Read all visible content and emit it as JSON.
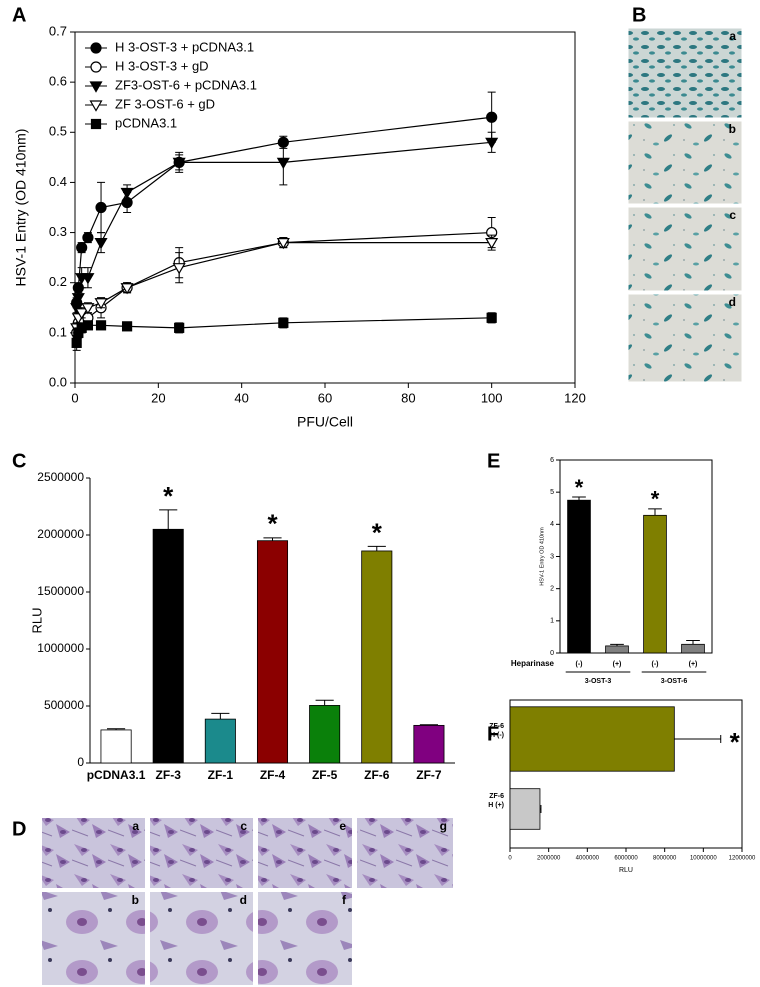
{
  "panel_labels": [
    "A",
    "B",
    "C",
    "D",
    "E",
    "F"
  ],
  "micrographs_B": [
    "a",
    "b",
    "c",
    "d"
  ],
  "micrographs_D": [
    "a",
    "c",
    "e",
    "g",
    "b",
    "d",
    "f"
  ],
  "chart_data": [
    {
      "type": "line",
      "xlabel": "PFU/Cell",
      "ylabel": "HSV-1 Entry (OD 410nm)",
      "x": [
        0.4,
        0.8,
        1.6,
        3.1,
        6.25,
        12.5,
        25,
        50,
        100
      ],
      "xlim": [
        0,
        120
      ],
      "xticks": [
        0,
        20,
        40,
        60,
        80,
        100,
        120
      ],
      "ylim": [
        0,
        0.7
      ],
      "yticks": [
        {
          "value": 0,
          "label": "0.0"
        },
        0.1,
        0.2,
        0.3,
        0.4,
        0.5,
        0.6,
        0.7
      ],
      "legend": "upper left",
      "series": [
        {
          "name": "H 3-OST-3 + pCDNA3.1",
          "color": "#000000",
          "marker": "circle",
          "filled": true,
          "values": [
            0.16,
            0.19,
            0.27,
            0.29,
            0.35,
            0.36,
            0.44,
            0.48,
            0.53
          ],
          "errors": [
            0.01,
            0.01,
            0.01,
            0.01,
            0.05,
            0.02,
            0.02,
            0.012,
            0.05
          ]
        },
        {
          "name": "H 3-OST-3 + gD",
          "color": "#000000",
          "marker": "circle",
          "filled": false,
          "values": [
            0.1,
            0.12,
            0.12,
            0.13,
            0.15,
            0.19,
            0.24,
            0.28,
            0.3
          ],
          "errors": [
            0.01,
            0.01,
            0.01,
            0.01,
            0.02,
            0.01,
            0.03,
            0.01,
            0.03
          ]
        },
        {
          "name": "ZF3-OST-6 + pCDNA3.1",
          "color": "#000000",
          "marker": "triangle-down",
          "filled": true,
          "values": [
            0.15,
            0.17,
            0.21,
            0.21,
            0.28,
            0.38,
            0.44,
            0.44,
            0.48
          ],
          "errors": [
            0.01,
            0.02,
            0.02,
            0.02,
            0.02,
            0.015,
            0.015,
            0.045,
            0.02
          ]
        },
        {
          "name": "ZF 3-OST-6 + gD",
          "color": "#000000",
          "marker": "triangle-down",
          "filled": false,
          "values": [
            0.11,
            0.13,
            0.14,
            0.15,
            0.16,
            0.19,
            0.23,
            0.28,
            0.28
          ],
          "errors": [
            0.01,
            0.01,
            0.01,
            0.01,
            0.01,
            0.01,
            0.03,
            0.01,
            0.015
          ]
        },
        {
          "name": "pCDNA3.1",
          "color": "#000000",
          "marker": "square",
          "filled": true,
          "values": [
            0.08,
            0.1,
            0.11,
            0.115,
            0.115,
            0.113,
            0.11,
            0.12,
            0.13
          ],
          "errors": [
            0.015,
            0.01,
            0.01,
            0.005,
            0.005,
            0.008,
            0.01,
            0.01,
            0.01
          ]
        }
      ]
    },
    {
      "type": "bar",
      "ylabel": "RLU",
      "categories": [
        "pCDNA3.1",
        "ZF-3",
        "ZF-1",
        "ZF-4",
        "ZF-5",
        "ZF-6",
        "ZF-7"
      ],
      "values": [
        290000,
        2050000,
        385000,
        1950000,
        505000,
        1860000,
        330000
      ],
      "errors": [
        10000,
        170000,
        50000,
        25000,
        45000,
        40000,
        5000
      ],
      "colors": [
        "#ffffff",
        "#000000",
        "#1b8a8c",
        "#8b0000",
        "#0a800a",
        "#7f7f00",
        "#800080"
      ],
      "significance": [
        null,
        "*",
        null,
        "*",
        null,
        "*",
        null
      ],
      "ylim": [
        0,
        2500000
      ],
      "yticks": [
        0,
        500000,
        1000000,
        1500000,
        2000000,
        2500000
      ]
    },
    {
      "type": "bar",
      "ylabel": "HSV-1 Entry OD 410nm",
      "category_title": "Heparinase",
      "categories": [
        "(-)",
        "(+)",
        "(-)",
        "(+)"
      ],
      "groups": [
        "3-OST-3",
        "3-OST-6"
      ],
      "values": [
        4.75,
        0.22,
        4.28,
        0.27
      ],
      "errors": [
        0.1,
        0.05,
        0.2,
        0.12
      ],
      "colors": [
        "#000000",
        "#808080",
        "#7f7f00",
        "#808080"
      ],
      "significance": [
        "*",
        null,
        "*",
        null
      ],
      "ylim": [
        0,
        6
      ],
      "yticks": [
        0,
        1,
        2,
        3,
        4,
        5,
        6
      ]
    },
    {
      "type": "barh",
      "xlabel": "RLU",
      "categories": [
        "ZF-6",
        "ZF-6"
      ],
      "subcategories": [
        "H (-)",
        "H (+)"
      ],
      "values": [
        8500000,
        1550000
      ],
      "errors": [
        2400000,
        50000
      ],
      "colors": [
        "#7f7f00",
        "#c8c8c8"
      ],
      "significance": [
        "*",
        null
      ],
      "xlim": [
        0,
        12000000
      ],
      "xticks": [
        0,
        2000000,
        4000000,
        6000000,
        8000000,
        10000000,
        12000000
      ]
    }
  ]
}
